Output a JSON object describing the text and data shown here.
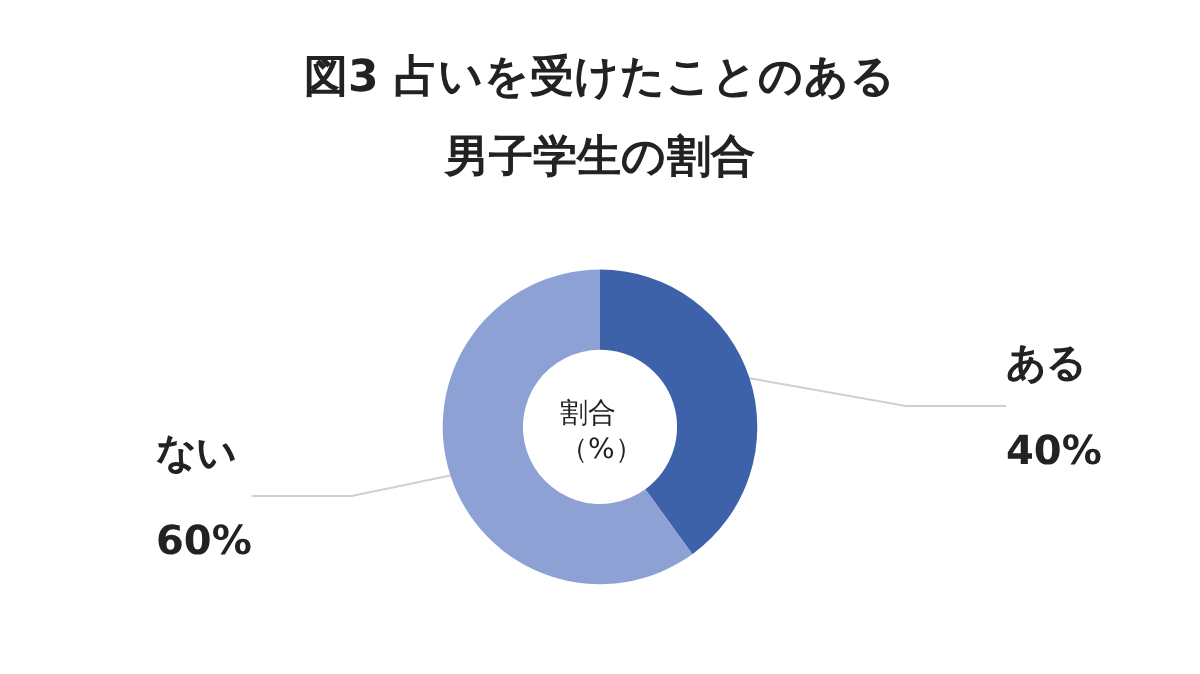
{
  "chart_data": {
    "type": "donut",
    "title": "図3 占いを受けたことのある男子学生の割合",
    "categories": [
      "ある",
      "ない"
    ],
    "values": [
      40,
      60
    ],
    "colors": [
      "#3d62aa",
      "#8ea1d5"
    ],
    "value_labels": [
      "40%",
      "60%"
    ],
    "annotations": [
      "割合（%）"
    ],
    "legend": false
  }
}
